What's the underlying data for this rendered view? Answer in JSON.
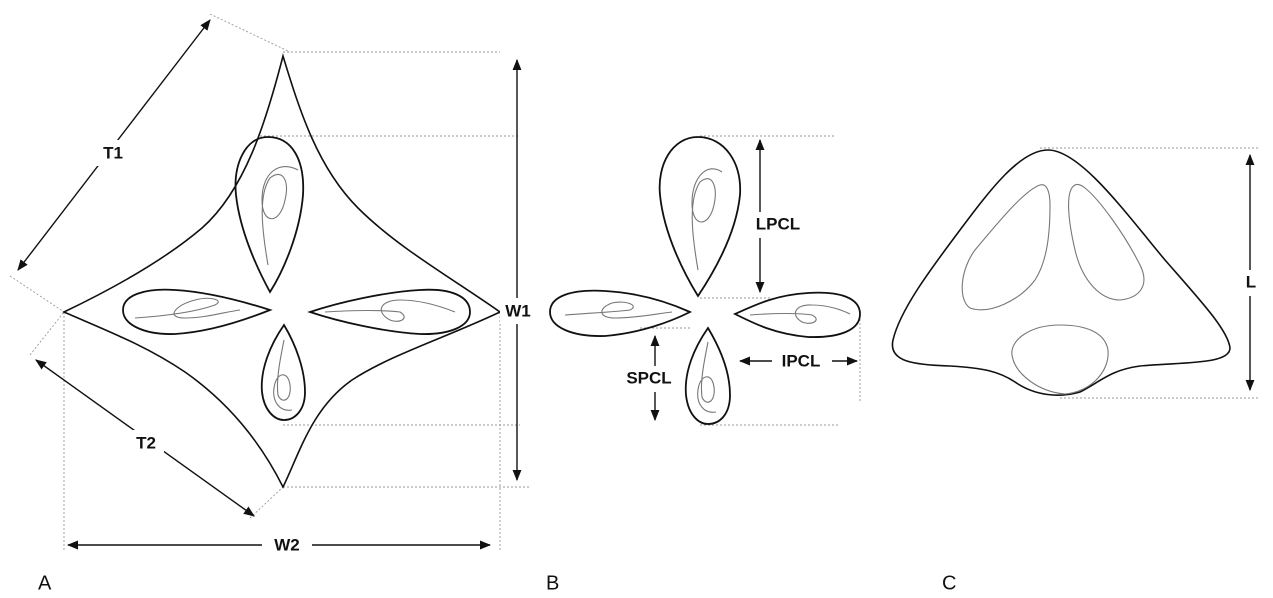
{
  "panel_a": {
    "label": "A",
    "dimensions": [
      "T1",
      "T2",
      "W1",
      "W2"
    ]
  },
  "panel_b": {
    "label": "B",
    "dimensions": [
      "LPCL",
      "SPCL",
      "IPCL"
    ]
  },
  "panel_c": {
    "label": "C",
    "dimensions": [
      "L"
    ]
  }
}
